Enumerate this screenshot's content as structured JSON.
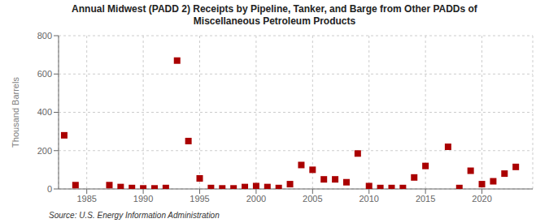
{
  "chart_data": {
    "type": "scatter",
    "title": "Annual Midwest (PADD 2) Receipts by Pipeline, Tanker, and Barge from Other PADDs of\nMiscellaneous Petroleum Products",
    "ylabel": "Thousand Barrels",
    "annotations": [
      "Source: U.S. Energy Information Administration"
    ],
    "x": [
      1983,
      1984,
      1987,
      1988,
      1989,
      1990,
      1991,
      1992,
      1993,
      1994,
      1995,
      1996,
      1997,
      1998,
      1999,
      2000,
      2001,
      2002,
      2003,
      2004,
      2005,
      2006,
      2007,
      2008,
      2009,
      2010,
      2011,
      2012,
      2013,
      2014,
      2015,
      2017,
      2018,
      2019,
      2020,
      2021,
      2022,
      2023
    ],
    "values": [
      280,
      20,
      20,
      10,
      5,
      3,
      3,
      5,
      670,
      250,
      55,
      5,
      3,
      3,
      10,
      15,
      10,
      5,
      25,
      125,
      100,
      50,
      50,
      35,
      185,
      15,
      5,
      5,
      5,
      60,
      120,
      220,
      5,
      95,
      25,
      40,
      80,
      115
    ],
    "color": "#aa0000",
    "marker": "square",
    "xlim": [
      1982.5,
      2024.5
    ],
    "ylim": [
      0,
      800
    ],
    "xticks": [
      1985,
      1990,
      1995,
      2000,
      2005,
      2010,
      2015,
      2020
    ],
    "yticks": [
      0,
      200,
      400,
      600,
      800
    ],
    "grid": true
  }
}
